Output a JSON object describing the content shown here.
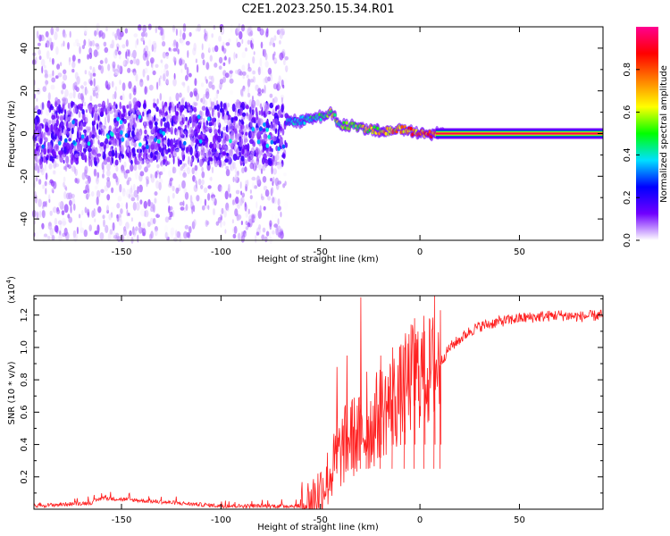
{
  "title": "C2E1.2023.250.15.34.R01",
  "chart_data": [
    {
      "type": "heatmap",
      "xlabel": "Height of straight line (km)",
      "ylabel": "Frequency (Hz)",
      "xlim": [
        -194,
        92
      ],
      "ylim": [
        -50,
        50
      ],
      "x_ticks": [
        -150,
        -100,
        -50,
        0,
        50
      ],
      "y_ticks": [
        -40,
        -20,
        0,
        20,
        40
      ],
      "colorbar": {
        "label": "Normalized spectral amplitude",
        "range": [
          0,
          1
        ],
        "ticks": [
          "0.0",
          "0.2",
          "0.4",
          "0.6",
          "0.8"
        ],
        "colormap": [
          "#ffffff",
          "#7000ff",
          "#0000ff",
          "#00e0ff",
          "#00ff00",
          "#ffff00",
          "#ff8000",
          "#ff0000",
          "#ff0090"
        ]
      },
      "ridge": {
        "description_x": [
          -60,
          -50,
          -45,
          -40,
          -30,
          -20,
          -10,
          0,
          10,
          90
        ],
        "frequency": [
          6,
          8,
          10,
          4,
          3,
          1,
          2,
          0,
          0,
          0
        ],
        "amplitude": [
          0.4,
          0.5,
          0.6,
          0.55,
          0.6,
          0.7,
          0.8,
          0.85,
          0.9,
          0.95
        ]
      }
    },
    {
      "type": "line",
      "xlabel": "Height of straight line (km)",
      "ylabel": "SNR (10 * v/v)",
      "y_scale_label": "(x10",
      "y_scale_exp": "4",
      "y_scale_close": ")",
      "xlim": [
        -194,
        92
      ],
      "ylim": [
        0,
        1.32
      ],
      "x_ticks": [
        -150,
        -100,
        -50,
        0,
        50
      ],
      "y_ticks": [
        "0.2",
        "0.4",
        "0.6",
        "0.8",
        "1.0",
        "1.2"
      ],
      "color": "#ff2020",
      "envelope": {
        "x": [
          -194,
          -165,
          -160,
          -100,
          -60,
          -55,
          -50,
          -45,
          -40,
          -35,
          -30,
          -25,
          -20,
          -15,
          -10,
          -5,
          0,
          5,
          10,
          15,
          20,
          25,
          30,
          40,
          50,
          60,
          70,
          80,
          92
        ],
        "y": [
          0.02,
          0.04,
          0.07,
          0.02,
          0.02,
          0.05,
          0.12,
          0.22,
          0.35,
          0.45,
          0.45,
          0.5,
          0.6,
          0.65,
          0.7,
          0.8,
          0.85,
          0.85,
          0.9,
          1.0,
          1.05,
          1.1,
          1.13,
          1.16,
          1.18,
          1.19,
          1.2,
          1.19,
          1.2
        ]
      },
      "spikes": [
        {
          "x": -42,
          "y": 0.88
        },
        {
          "x": -37,
          "y": 0.95
        },
        {
          "x": -30,
          "y": 1.31
        },
        {
          "x": -27,
          "y": 0.85
        },
        {
          "x": -20,
          "y": 0.95
        },
        {
          "x": -14,
          "y": 1.0
        },
        {
          "x": -8,
          "y": 1.0
        },
        {
          "x": -3,
          "y": 1.18
        },
        {
          "x": 2,
          "y": 1.1
        },
        {
          "x": 7,
          "y": 1.32
        },
        {
          "x": 10,
          "y": 1.23
        }
      ]
    }
  ]
}
